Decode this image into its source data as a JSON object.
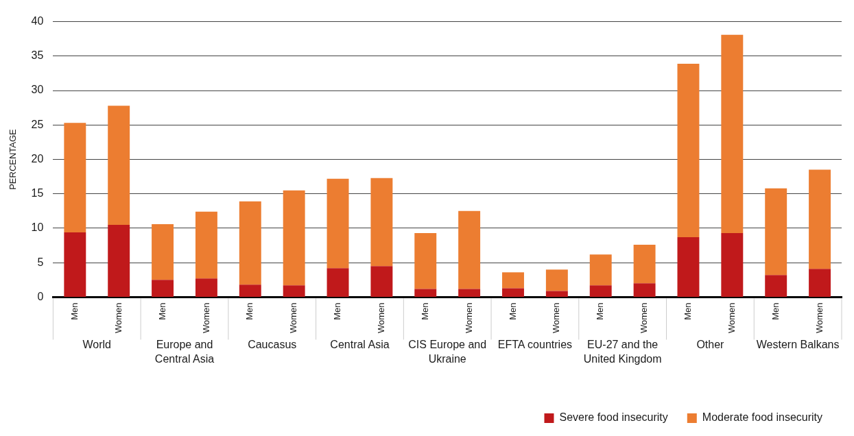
{
  "chart_data": {
    "type": "bar",
    "ylabel": "PERCENTAGE",
    "categories": [
      "Men",
      "Women",
      "Men",
      "Women",
      "Men",
      "Women",
      "Men",
      "Women",
      "Men",
      "Women",
      "Men",
      "Women",
      "Men",
      "Women",
      "Men",
      "Women",
      "Men",
      "Women"
    ],
    "annotations": [
      "World",
      "Europe and Central Asia",
      "Caucasus",
      "Central Asia",
      "CIS Europe and Ukraine",
      "EFTA countries",
      "EU-27 and the United Kingdom",
      "Other",
      "Western Balkans"
    ],
    "stacked": true,
    "series": [
      {
        "name": "Severe food insecurity",
        "color": "#c0191b",
        "values": [
          9.4,
          10.5,
          2.5,
          2.7,
          1.8,
          1.7,
          4.2,
          4.5,
          1.2,
          1.2,
          1.3,
          0.9,
          1.7,
          2.0,
          8.7,
          9.3,
          3.2,
          4.1
        ]
      },
      {
        "name": "Moderate food insecurity",
        "color": "#ec7d31",
        "values": [
          15.9,
          17.3,
          8.1,
          9.7,
          12.1,
          13.8,
          13.0,
          12.8,
          8.1,
          11.3,
          2.3,
          3.1,
          4.5,
          5.6,
          25.2,
          28.8,
          12.6,
          14.4
        ]
      }
    ],
    "ylim": [
      0,
      40
    ],
    "yticks": [
      0,
      5,
      10,
      15,
      20,
      25,
      30,
      35,
      40
    ],
    "grid": "y",
    "legend": "bottom right"
  }
}
